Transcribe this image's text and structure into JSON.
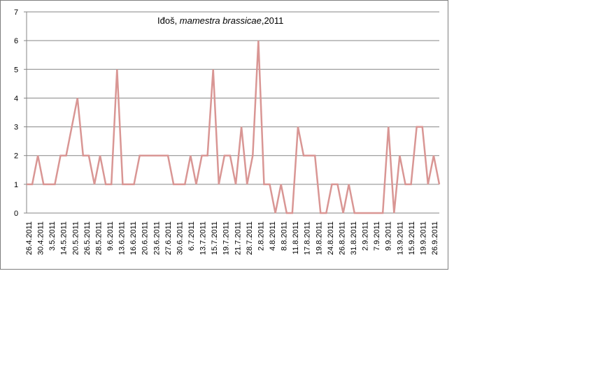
{
  "chart_data": {
    "type": "line",
    "title": {
      "prefix": "Iđoš, ",
      "species": "mamestra brassicae",
      "suffix": ",2011"
    },
    "xlabel": "",
    "ylabel": "",
    "ylim": [
      0,
      7
    ],
    "yticks": [
      0,
      1,
      2,
      3,
      4,
      5,
      6,
      7
    ],
    "grid": true,
    "legend": "none",
    "series_color": "#d99694",
    "x_tick_labels": [
      "26.4.2011",
      "30.4.2011",
      "3.5.2011",
      "14.5.2011",
      "20.5.2011",
      "26.5.2011",
      "28.5.2011",
      "9.6.2011",
      "13.6.2011",
      "16.6.2011",
      "20.6.2011",
      "23.6.2011",
      "27.6.2011",
      "30.6.2011",
      "6.7.2011",
      "13.7.2011",
      "15.7.2011",
      "19.7.2011",
      "21.7.2011",
      "28.7.2011",
      "2.8.2011",
      "4.8.2011",
      "8.8.2011",
      "11.8.2011",
      "17.8.2011",
      "19.8.2011",
      "24.8.2011",
      "26.8.2011",
      "31.8.2011",
      "2.9.2011",
      "7.9.2011",
      "9.9.2011",
      "13.9.2011",
      "15.9.2011",
      "19.9.2011",
      "26.9.2011"
    ],
    "series": [
      {
        "values": [
          1,
          1,
          2,
          1,
          1,
          1,
          2,
          2,
          3,
          4,
          2,
          2,
          1,
          2,
          1,
          1,
          5,
          1,
          1,
          1,
          2,
          2,
          2,
          2,
          2,
          2,
          1,
          1,
          1,
          2,
          1,
          2,
          2,
          5,
          1,
          2,
          2,
          1,
          3,
          1,
          2,
          6,
          1,
          1,
          0,
          1,
          0,
          0,
          3,
          2,
          2,
          2,
          0,
          0,
          1,
          1,
          0,
          1,
          0,
          0,
          0,
          0,
          0,
          0,
          3,
          0,
          2,
          1,
          1,
          3,
          3,
          1,
          2,
          1
        ]
      }
    ]
  }
}
